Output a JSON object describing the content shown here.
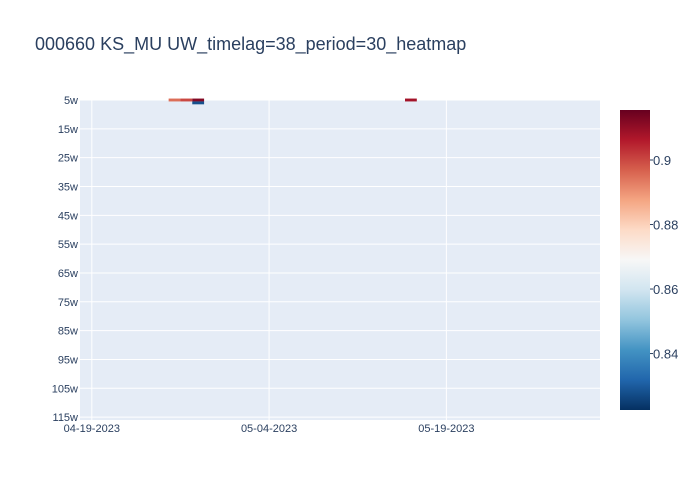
{
  "chart_data": {
    "type": "heatmap",
    "title": "000660 KS_MU UW_timelag=38_period=30_heatmap",
    "xlabel": "",
    "ylabel": "",
    "x_ticks": [
      {
        "label": "04-19-2023",
        "date": "2023-04-19"
      },
      {
        "label": "05-04-2023",
        "date": "2023-05-04"
      },
      {
        "label": "05-19-2023",
        "date": "2023-05-19"
      }
    ],
    "x_range": [
      "2023-04-18",
      "2023-06-01"
    ],
    "y_ticks": [
      "5w",
      "15w",
      "25w",
      "35w",
      "45w",
      "55w",
      "65w",
      "75w",
      "85w",
      "95w",
      "105w",
      "115w"
    ],
    "y_range": [
      5,
      116
    ],
    "cells": [
      {
        "date": "2023-04-26",
        "window": 5,
        "value": 0.895
      },
      {
        "date": "2023-04-27",
        "window": 5,
        "value": 0.9
      },
      {
        "date": "2023-04-28",
        "window": 5,
        "value": 0.912
      },
      {
        "date": "2023-04-28",
        "window": 6,
        "value": 0.828
      },
      {
        "date": "2023-05-16",
        "window": 5,
        "value": 0.908
      }
    ],
    "colorscale": "RdBu (reversed)",
    "colorbar": {
      "min": 0.8225,
      "max": 0.9155,
      "ticks": [
        0.84,
        0.86,
        0.88,
        0.9
      ],
      "tick_labels": [
        "0.84",
        "0.86",
        "0.88",
        "0.9"
      ]
    },
    "grid": true,
    "plot_background": "#e5ecf6"
  }
}
